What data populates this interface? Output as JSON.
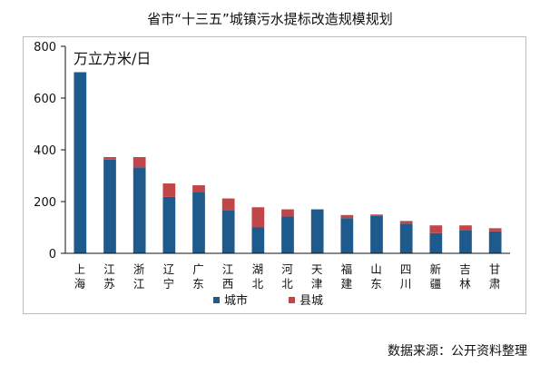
{
  "chart_data": {
    "type": "bar",
    "stacked": true,
    "title": "省市“十三五”城镇污水提标改造规模规划",
    "unit_label": "万立方米/日",
    "ylim": [
      0,
      800
    ],
    "yticks": [
      0,
      200,
      400,
      600,
      800
    ],
    "legend_position": "bottom",
    "grid": false,
    "categories": [
      "上海",
      "江苏",
      "浙江",
      "辽宁",
      "广东",
      "江西",
      "湖北",
      "河北",
      "天津",
      "福建",
      "山东",
      "四川",
      "新疆",
      "吉林",
      "甘肃"
    ],
    "series": [
      {
        "name": "城市",
        "color": "#1f5a8c",
        "values": [
          700,
          362,
          332,
          218,
          238,
          165,
          100,
          142,
          170,
          136,
          145,
          115,
          78,
          90,
          85
        ]
      },
      {
        "name": "县城",
        "color": "#c0464a",
        "values": [
          0,
          10,
          40,
          52,
          25,
          47,
          78,
          28,
          0,
          12,
          5,
          10,
          30,
          18,
          12
        ]
      }
    ]
  },
  "source_text": "数据来源：公开资料整理"
}
